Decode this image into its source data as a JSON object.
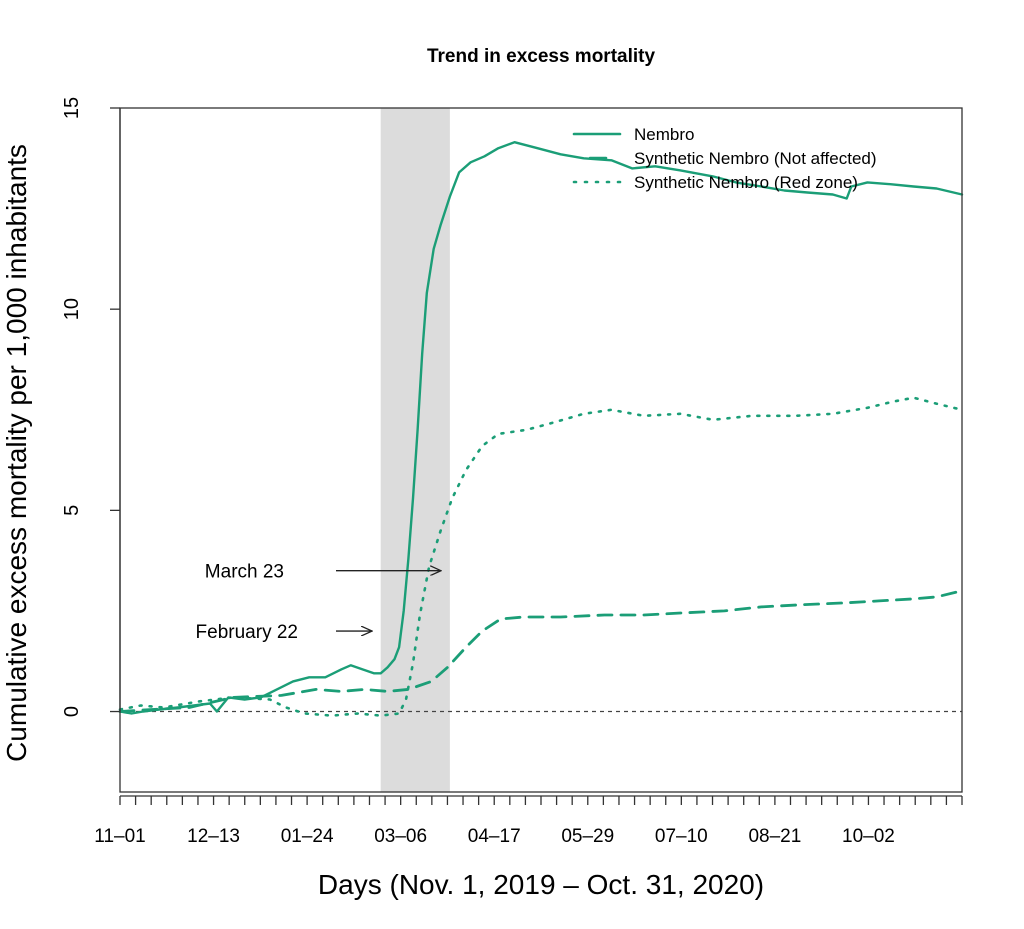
{
  "chart_data": {
    "type": "line",
    "title": "Trend in excess mortality",
    "xlabel": "Days (Nov. 1, 2019 – Oct. 31, 2020)",
    "ylabel": "Cumulative excess mortality per 1,000 inhabitants",
    "x_ticks": [
      "11–01",
      "12–13",
      "01–24",
      "03–06",
      "04–17",
      "05–29",
      "07–10",
      "08–21",
      "10–02"
    ],
    "x_range": [
      "2019-11-01",
      "2020-10-31"
    ],
    "ylim": [
      -2,
      15
    ],
    "y_ticks": [
      0,
      5,
      10,
      15
    ],
    "color": "#1b9e77",
    "shaded_interval": [
      "2020-02-22",
      "2020-03-23"
    ],
    "reference_line_y": 0,
    "legend_position": "top-right",
    "annotations": [
      {
        "text": "March 23",
        "date": "2020-03-23",
        "y": 3.5
      },
      {
        "text": "February 22",
        "date": "2020-02-22",
        "y": 2.0
      }
    ],
    "series": [
      {
        "name": "Nembro",
        "style": "solid",
        "points": [
          [
            "2019-11-01",
            0.0
          ],
          [
            "2019-11-06",
            -0.05
          ],
          [
            "2019-11-11",
            0.0
          ],
          [
            "2019-11-18",
            0.05
          ],
          [
            "2019-11-26",
            0.1
          ],
          [
            "2019-12-03",
            0.15
          ],
          [
            "2019-12-10",
            0.2
          ],
          [
            "2019-12-13",
            0.0
          ],
          [
            "2019-12-18",
            0.35
          ],
          [
            "2019-12-25",
            0.3
          ],
          [
            "2020-01-01",
            0.35
          ],
          [
            "2020-01-08",
            0.55
          ],
          [
            "2020-01-15",
            0.75
          ],
          [
            "2020-01-22",
            0.85
          ],
          [
            "2020-01-29",
            0.85
          ],
          [
            "2020-02-05",
            1.05
          ],
          [
            "2020-02-09",
            1.15
          ],
          [
            "2020-02-14",
            1.05
          ],
          [
            "2020-02-19",
            0.95
          ],
          [
            "2020-02-22",
            0.95
          ],
          [
            "2020-02-25",
            1.1
          ],
          [
            "2020-02-28",
            1.3
          ],
          [
            "2020-03-01",
            1.6
          ],
          [
            "2020-03-03",
            2.5
          ],
          [
            "2020-03-05",
            3.8
          ],
          [
            "2020-03-07",
            5.3
          ],
          [
            "2020-03-09",
            7.0
          ],
          [
            "2020-03-11",
            8.9
          ],
          [
            "2020-03-13",
            10.4
          ],
          [
            "2020-03-16",
            11.5
          ],
          [
            "2020-03-19",
            12.1
          ],
          [
            "2020-03-23",
            12.8
          ],
          [
            "2020-03-27",
            13.4
          ],
          [
            "2020-04-01",
            13.65
          ],
          [
            "2020-04-07",
            13.8
          ],
          [
            "2020-04-13",
            14.0
          ],
          [
            "2020-04-20",
            14.15
          ],
          [
            "2020-04-30",
            14.0
          ],
          [
            "2020-05-10",
            13.85
          ],
          [
            "2020-05-20",
            13.75
          ],
          [
            "2020-06-01",
            13.7
          ],
          [
            "2020-06-10",
            13.5
          ],
          [
            "2020-06-20",
            13.55
          ],
          [
            "2020-07-01",
            13.45
          ],
          [
            "2020-07-15",
            13.3
          ],
          [
            "2020-07-25",
            13.15
          ],
          [
            "2020-08-05",
            13.05
          ],
          [
            "2020-08-15",
            12.95
          ],
          [
            "2020-08-25",
            12.9
          ],
          [
            "2020-09-05",
            12.85
          ],
          [
            "2020-09-11",
            12.75
          ],
          [
            "2020-09-13",
            13.05
          ],
          [
            "2020-09-20",
            13.15
          ],
          [
            "2020-10-01",
            13.1
          ],
          [
            "2020-10-10",
            13.05
          ],
          [
            "2020-10-20",
            13.0
          ],
          [
            "2020-10-31",
            12.85
          ]
        ]
      },
      {
        "name": "Synthetic Nembro (Not affected)",
        "style": "dashed",
        "points": [
          [
            "2019-11-01",
            0.0
          ],
          [
            "2019-11-15",
            0.05
          ],
          [
            "2019-12-01",
            0.1
          ],
          [
            "2019-12-20",
            0.35
          ],
          [
            "2020-01-10",
            0.4
          ],
          [
            "2020-01-25",
            0.55
          ],
          [
            "2020-02-05",
            0.5
          ],
          [
            "2020-02-15",
            0.55
          ],
          [
            "2020-02-25",
            0.5
          ],
          [
            "2020-03-05",
            0.55
          ],
          [
            "2020-03-15",
            0.75
          ],
          [
            "2020-03-22",
            1.1
          ],
          [
            "2020-03-30",
            1.6
          ],
          [
            "2020-04-06",
            2.0
          ],
          [
            "2020-04-14",
            2.3
          ],
          [
            "2020-04-24",
            2.35
          ],
          [
            "2020-05-10",
            2.35
          ],
          [
            "2020-05-29",
            2.4
          ],
          [
            "2020-06-15",
            2.4
          ],
          [
            "2020-07-01",
            2.45
          ],
          [
            "2020-07-20",
            2.5
          ],
          [
            "2020-08-05",
            2.6
          ],
          [
            "2020-08-21",
            2.65
          ],
          [
            "2020-09-10",
            2.7
          ],
          [
            "2020-09-25",
            2.75
          ],
          [
            "2020-10-10",
            2.8
          ],
          [
            "2020-10-20",
            2.85
          ],
          [
            "2020-10-31",
            3.0
          ]
        ]
      },
      {
        "name": "Synthetic Nembro (Red zone)",
        "style": "dotted",
        "points": [
          [
            "2019-11-01",
            0.05
          ],
          [
            "2019-11-10",
            0.15
          ],
          [
            "2019-11-20",
            0.1
          ],
          [
            "2019-12-05",
            0.25
          ],
          [
            "2019-12-20",
            0.35
          ],
          [
            "2020-01-05",
            0.3
          ],
          [
            "2020-01-12",
            0.1
          ],
          [
            "2020-01-20",
            -0.05
          ],
          [
            "2020-02-01",
            -0.1
          ],
          [
            "2020-02-12",
            -0.05
          ],
          [
            "2020-02-22",
            -0.1
          ],
          [
            "2020-03-01",
            -0.05
          ],
          [
            "2020-03-04",
            0.3
          ],
          [
            "2020-03-07",
            1.2
          ],
          [
            "2020-03-10",
            2.4
          ],
          [
            "2020-03-14",
            3.6
          ],
          [
            "2020-03-19",
            4.5
          ],
          [
            "2020-03-24",
            5.3
          ],
          [
            "2020-03-30",
            6.0
          ],
          [
            "2020-04-06",
            6.6
          ],
          [
            "2020-04-13",
            6.9
          ],
          [
            "2020-04-25",
            7.0
          ],
          [
            "2020-05-05",
            7.15
          ],
          [
            "2020-05-20",
            7.4
          ],
          [
            "2020-06-01",
            7.5
          ],
          [
            "2020-06-15",
            7.35
          ],
          [
            "2020-07-01",
            7.4
          ],
          [
            "2020-07-15",
            7.25
          ],
          [
            "2020-08-01",
            7.35
          ],
          [
            "2020-08-20",
            7.35
          ],
          [
            "2020-09-05",
            7.4
          ],
          [
            "2020-09-20",
            7.55
          ],
          [
            "2020-10-01",
            7.7
          ],
          [
            "2020-10-10",
            7.8
          ],
          [
            "2020-10-20",
            7.65
          ],
          [
            "2020-10-31",
            7.5
          ]
        ]
      }
    ]
  }
}
